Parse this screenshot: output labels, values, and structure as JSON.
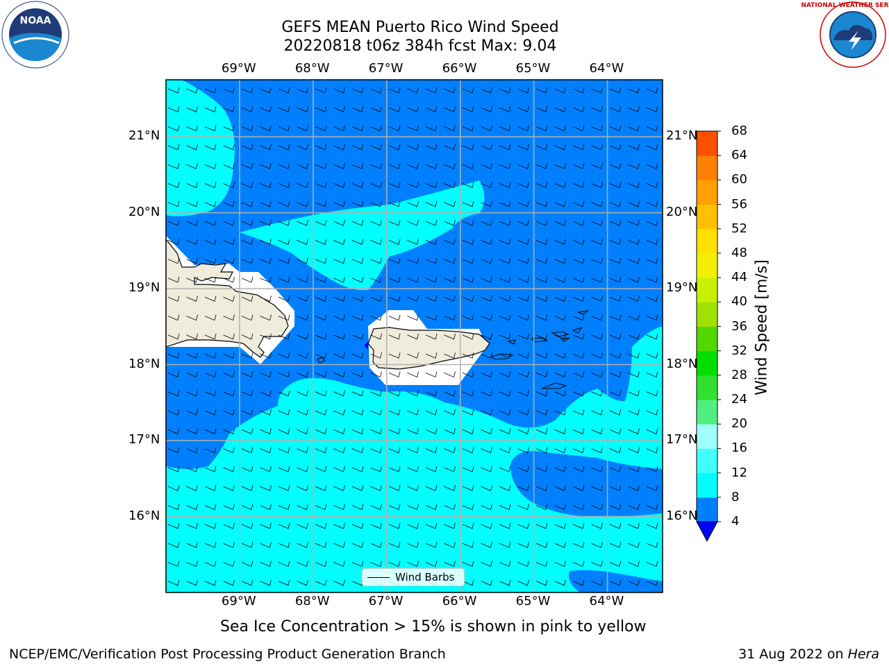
{
  "title_line1": "GEFS MEAN Puerto Rico Wind Speed",
  "title_line2": "20220818 t06z 384h fcst   Max: 9.04",
  "lon_labels": [
    "69°W",
    "68°W",
    "67°W",
    "66°W",
    "65°W",
    "64°W"
  ],
  "lat_labels": [
    "21°N",
    "20°N",
    "19°N",
    "18°N",
    "17°N",
    "16°N"
  ],
  "lon_values": [
    -69,
    -68,
    -67,
    -66,
    -65,
    -64
  ],
  "lat_values": [
    21,
    20,
    19,
    18,
    17,
    16
  ],
  "map_extent": {
    "lon_min": -70,
    "lon_max": -63.25,
    "lat_min": 15,
    "lat_max": 21.75
  },
  "colorbar": {
    "title": "Wind Speed [m/s]",
    "ticks": [
      "68",
      "64",
      "60",
      "56",
      "52",
      "48",
      "44",
      "40",
      "36",
      "32",
      "28",
      "24",
      "20",
      "16",
      "12",
      "8",
      "4"
    ],
    "levels": [
      4,
      8,
      12,
      16,
      20,
      24,
      28,
      32,
      36,
      40,
      44,
      48,
      52,
      56,
      60,
      64,
      68
    ],
    "colors": [
      "#0080ff",
      "#00ffff",
      "#40ffff",
      "#a0ffff",
      "#50f080",
      "#30e030",
      "#00e000",
      "#50d800",
      "#a0e000",
      "#c8f000",
      "#f0f000",
      "#ffe000",
      "#ffc000",
      "#ffa000",
      "#ff8000",
      "#ff5000",
      "#ff2000",
      "#ff0000"
    ],
    "under_color": "#0000ff"
  },
  "legend_label": "Wind Barbs",
  "ice_note": "Sea Ice Concentration > 15% is shown in pink to yellow",
  "footer_left": "NCEP/EMC/Verification Post Processing Product Generation Branch",
  "footer_right_date": "31 Aug 2022 on ",
  "footer_right_host": "Hera",
  "logos": {
    "left": "NOAA",
    "right": "NATIONAL WEATHER SERVICE"
  },
  "colors": {
    "blue": "#0080ff",
    "cyan": "#00ffff",
    "land": "#efecdc",
    "grid": "#b0b0b0"
  }
}
